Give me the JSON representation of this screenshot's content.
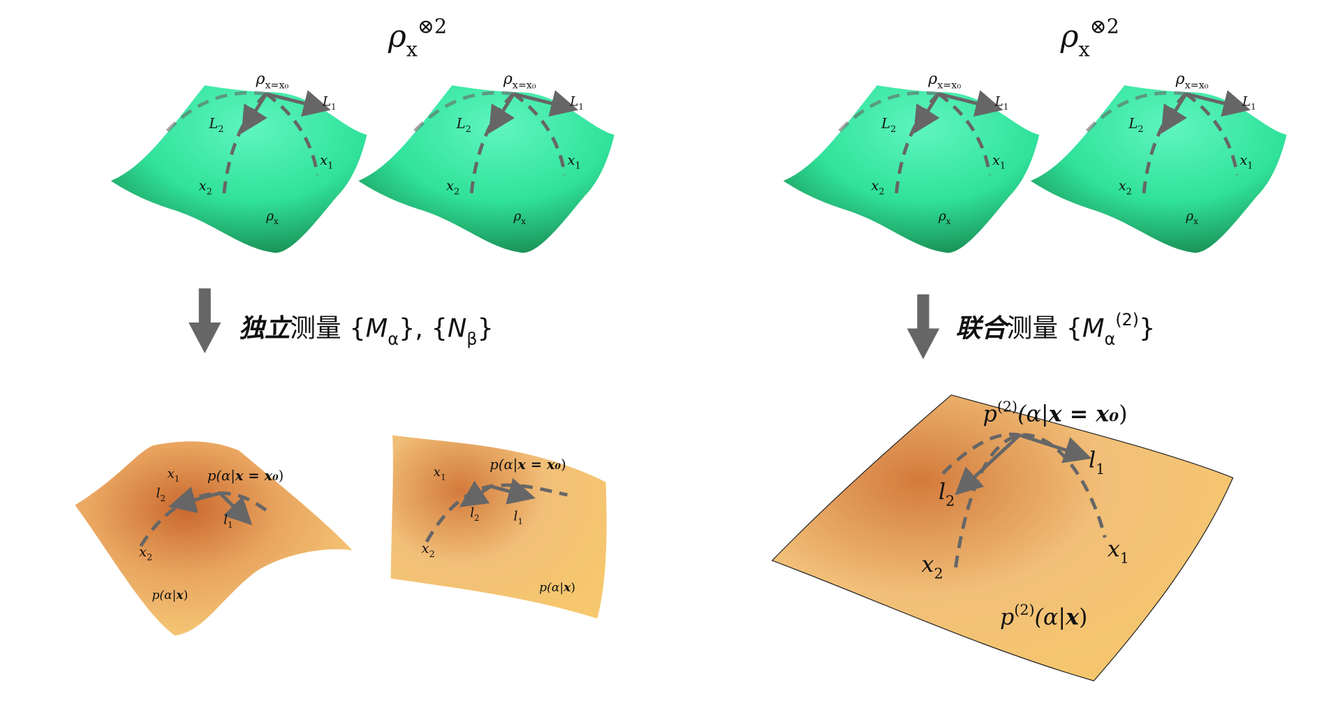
{
  "panels": [
    {
      "title": [
        {
          "text": "ρ",
          "role": "italic"
        },
        {
          "text": "x",
          "role": "sub"
        },
        {
          "text": "⊗2",
          "role": "sup"
        }
      ],
      "states": [
        {
          "labels": [
            [
              {
                "text": "ρ",
                "role": "italic"
              },
              {
                "text": "x=x₀",
                "role": "sub"
              }
            ],
            [
              {
                "text": "L",
                "role": "italic"
              },
              {
                "text": "1",
                "role": "sub"
              }
            ],
            [
              {
                "text": "L",
                "role": "italic"
              },
              {
                "text": "2",
                "role": "sub"
              }
            ],
            [
              {
                "text": "x",
                "role": "italic"
              },
              {
                "text": "1",
                "role": "sub"
              }
            ],
            [
              {
                "text": "x",
                "role": "italic"
              },
              {
                "text": "2",
                "role": "sub"
              }
            ],
            [
              {
                "text": "ρ",
                "role": "italic"
              },
              {
                "text": "x",
                "role": "sub"
              }
            ]
          ]
        },
        {
          "labels": [
            [
              {
                "text": "ρ",
                "role": "italic"
              },
              {
                "text": "x=x₀",
                "role": "sub"
              }
            ],
            [
              {
                "text": "L",
                "role": "italic"
              },
              {
                "text": "1",
                "role": "sub"
              }
            ],
            [
              {
                "text": "L",
                "role": "italic"
              },
              {
                "text": "2",
                "role": "sub"
              }
            ],
            [
              {
                "text": "x",
                "role": "italic"
              },
              {
                "text": "1",
                "role": "sub"
              }
            ],
            [
              {
                "text": "x",
                "role": "italic"
              },
              {
                "text": "2",
                "role": "sub"
              }
            ],
            [
              {
                "text": "ρ",
                "role": "italic"
              },
              {
                "text": "x",
                "role": "sub"
              }
            ]
          ]
        }
      ],
      "measurement": [
        {
          "text": "独立",
          "role": "bold"
        },
        {
          "text": "测量 {",
          "role": "normal"
        },
        {
          "text": "M",
          "role": "italic"
        },
        {
          "text": "α",
          "role": "sub"
        },
        {
          "text": "}, {",
          "role": "normal"
        },
        {
          "text": "N",
          "role": "italic"
        },
        {
          "text": "β",
          "role": "sub"
        },
        {
          "text": "}",
          "role": "normal"
        }
      ],
      "outcomes": [
        {
          "labels": [
            [
              {
                "text": "x",
                "role": "italic"
              },
              {
                "text": "1",
                "role": "sub"
              }
            ],
            [
              {
                "text": "p(α|",
                "role": "italic"
              },
              {
                "text": "x = x₀",
                "role": "bold"
              },
              {
                "text": ")",
                "role": "normal"
              }
            ],
            [
              {
                "text": "l",
                "role": "italic"
              },
              {
                "text": "2",
                "role": "sub"
              }
            ],
            [
              {
                "text": "l",
                "role": "italic"
              },
              {
                "text": "1",
                "role": "sub"
              }
            ],
            [
              {
                "text": "x",
                "role": "italic"
              },
              {
                "text": "2",
                "role": "sub"
              }
            ],
            [
              {
                "text": "p(α|",
                "role": "italic"
              },
              {
                "text": "x",
                "role": "bold"
              },
              {
                "text": ")",
                "role": "normal"
              }
            ]
          ]
        },
        {
          "labels": [
            [
              {
                "text": "x",
                "role": "italic"
              },
              {
                "text": "1",
                "role": "sub"
              }
            ],
            [
              {
                "text": "p(α|",
                "role": "italic"
              },
              {
                "text": "x = x₀",
                "role": "bold"
              },
              {
                "text": ")",
                "role": "normal"
              }
            ],
            [
              {
                "text": "l",
                "role": "italic"
              },
              {
                "text": "2",
                "role": "sub"
              }
            ],
            [
              {
                "text": "l",
                "role": "italic"
              },
              {
                "text": "1",
                "role": "sub"
              }
            ],
            [
              {
                "text": "x",
                "role": "italic"
              },
              {
                "text": "2",
                "role": "sub"
              }
            ],
            [
              {
                "text": "p(α|",
                "role": "italic"
              },
              {
                "text": "x",
                "role": "bold"
              },
              {
                "text": ")",
                "role": "normal"
              }
            ]
          ]
        }
      ]
    },
    {
      "title": [
        {
          "text": "ρ",
          "role": "italic"
        },
        {
          "text": "x",
          "role": "sub"
        },
        {
          "text": "⊗2",
          "role": "sup"
        }
      ],
      "states": [
        {
          "labels": [
            [
              {
                "text": "ρ",
                "role": "italic"
              },
              {
                "text": "x=x₀",
                "role": "sub"
              }
            ],
            [
              {
                "text": "L",
                "role": "italic"
              },
              {
                "text": "1",
                "role": "sub"
              }
            ],
            [
              {
                "text": "L",
                "role": "italic"
              },
              {
                "text": "2",
                "role": "sub"
              }
            ],
            [
              {
                "text": "x",
                "role": "italic"
              },
              {
                "text": "1",
                "role": "sub"
              }
            ],
            [
              {
                "text": "x",
                "role": "italic"
              },
              {
                "text": "2",
                "role": "sub"
              }
            ],
            [
              {
                "text": "ρ",
                "role": "italic"
              },
              {
                "text": "x",
                "role": "sub"
              }
            ]
          ]
        },
        {
          "labels": [
            [
              {
                "text": "ρ",
                "role": "italic"
              },
              {
                "text": "x=x₀",
                "role": "sub"
              }
            ],
            [
              {
                "text": "L",
                "role": "italic"
              },
              {
                "text": "1",
                "role": "sub"
              }
            ],
            [
              {
                "text": "L",
                "role": "italic"
              },
              {
                "text": "2",
                "role": "sub"
              }
            ],
            [
              {
                "text": "x",
                "role": "italic"
              },
              {
                "text": "1",
                "role": "sub"
              }
            ],
            [
              {
                "text": "x",
                "role": "italic"
              },
              {
                "text": "2",
                "role": "sub"
              }
            ],
            [
              {
                "text": "ρ",
                "role": "italic"
              },
              {
                "text": "x",
                "role": "sub"
              }
            ]
          ]
        }
      ],
      "measurement": [
        {
          "text": "联合",
          "role": "bold"
        },
        {
          "text": "测量 {",
          "role": "normal"
        },
        {
          "text": "M",
          "role": "italic"
        },
        {
          "text": "α",
          "role": "sub"
        },
        {
          "text": "(2)",
          "role": "sup"
        },
        {
          "text": "}",
          "role": "normal"
        }
      ],
      "outcomes": [
        {
          "labels": [
            [
              {
                "text": "p",
                "role": "italic"
              },
              {
                "text": "(2)",
                "role": "sup"
              },
              {
                "text": "(α|",
                "role": "italic"
              },
              {
                "text": "x = x₀",
                "role": "bold"
              },
              {
                "text": ")",
                "role": "normal"
              }
            ],
            [
              {
                "text": "l",
                "role": "italic"
              },
              {
                "text": "1",
                "role": "sub"
              }
            ],
            [
              {
                "text": "l",
                "role": "italic"
              },
              {
                "text": "2",
                "role": "sub"
              }
            ],
            [
              {
                "text": "x",
                "role": "italic"
              },
              {
                "text": "2",
                "role": "sub"
              }
            ],
            [
              {
                "text": "x",
                "role": "italic"
              },
              {
                "text": "1",
                "role": "sub"
              }
            ],
            [
              {
                "text": "p",
                "role": "italic"
              },
              {
                "text": "(2)",
                "role": "sup"
              },
              {
                "text": "(α|",
                "role": "italic"
              },
              {
                "text": "x",
                "role": "bold"
              },
              {
                "text": ")",
                "role": "normal"
              }
            ]
          ]
        }
      ]
    }
  ]
}
